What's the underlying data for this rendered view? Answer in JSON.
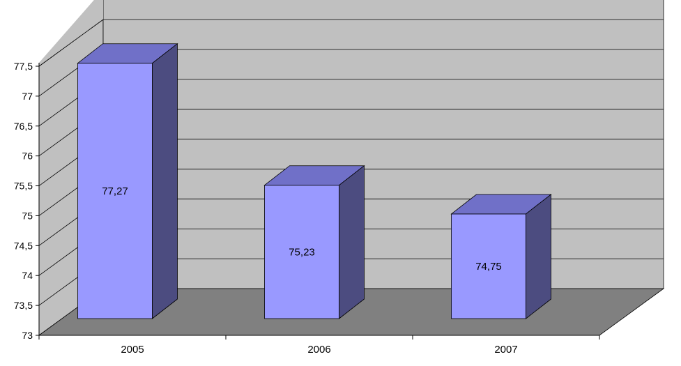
{
  "chart_data": {
    "type": "bar",
    "style": "3d-column",
    "categories": [
      "2005",
      "2006",
      "2007"
    ],
    "values": [
      77.27,
      75.23,
      74.75
    ],
    "data_labels": [
      "77,27",
      "75,23",
      "74,75"
    ],
    "y_ticks": [
      73,
      73.5,
      74,
      74.5,
      75,
      75.5,
      76,
      76.5,
      77,
      77.5
    ],
    "y_tick_labels": [
      "73",
      "73,5",
      "74",
      "74,5",
      "75",
      "75,5",
      "76",
      "76,5",
      "77",
      "77,5"
    ],
    "ylim": [
      73,
      77.5
    ],
    "grid": true,
    "legend": "none",
    "colors": {
      "bar_front": "#9999ff",
      "bar_top": "#7070c8",
      "bar_side": "#4c4c80",
      "wall": "#c0c0c0",
      "floor": "#808080",
      "grid": "#000000"
    }
  }
}
